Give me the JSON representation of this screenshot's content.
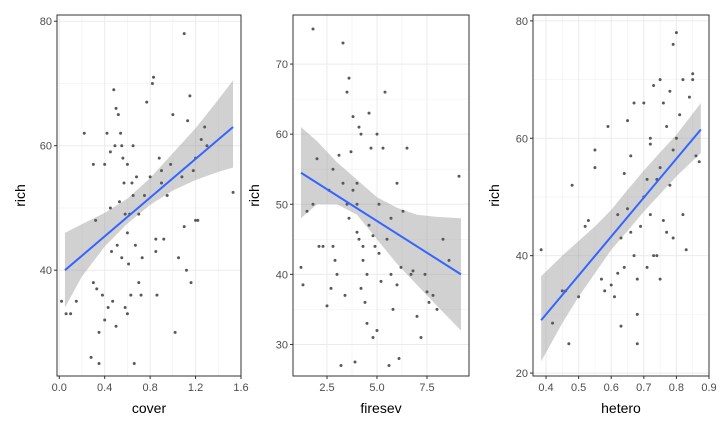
{
  "chart_data": [
    {
      "type": "scatter",
      "xlabel": "cover",
      "ylabel": "rich",
      "xlim": [
        -0.02,
        1.6
      ],
      "ylim": [
        23,
        81
      ],
      "xticks": [
        0.0,
        0.4,
        0.8,
        1.2,
        1.6
      ],
      "yticks": [
        40,
        60,
        80
      ],
      "xtick_labels": [
        "0.0",
        "0.4",
        "0.8",
        "1.2",
        "1.6"
      ],
      "ytick_labels": [
        "40",
        "60",
        "80"
      ],
      "grid": true,
      "fit_line": {
        "x": [
          0.05,
          1.53
        ],
        "y": [
          40,
          63
        ]
      },
      "ci_band": {
        "x": [
          0.05,
          0.2,
          0.4,
          0.6,
          0.8,
          1.0,
          1.2,
          1.4,
          1.53
        ],
        "lower": [
          34,
          39,
          43.8,
          47.5,
          50.5,
          52.8,
          54.5,
          55.8,
          56.5
        ],
        "upper": [
          46,
          47.4,
          49.2,
          51.5,
          54.8,
          58.8,
          62.8,
          67.4,
          70.5
        ]
      },
      "x": [
        0.02,
        0.06,
        0.1,
        0.15,
        0.22,
        0.28,
        0.3,
        0.32,
        0.33,
        0.35,
        0.38,
        0.4,
        0.42,
        0.43,
        0.45,
        0.46,
        0.47,
        0.48,
        0.49,
        0.5,
        0.5,
        0.51,
        0.52,
        0.53,
        0.54,
        0.55,
        0.55,
        0.56,
        0.57,
        0.58,
        0.58,
        0.6,
        0.6,
        0.61,
        0.62,
        0.63,
        0.64,
        0.65,
        0.66,
        0.67,
        0.68,
        0.7,
        0.72,
        0.73,
        0.75,
        0.77,
        0.8,
        0.82,
        0.83,
        0.85,
        0.85,
        0.86,
        0.88,
        0.9,
        0.92,
        0.95,
        0.98,
        1.0,
        1.02,
        1.05,
        1.08,
        1.1,
        1.12,
        1.13,
        1.15,
        1.16,
        1.18,
        1.2,
        1.22,
        1.25,
        1.28,
        1.3,
        0.3,
        0.4,
        0.45,
        0.6,
        0.7,
        0.9,
        1.1,
        1.2,
        1.53,
        0.35,
        0.65
      ],
      "y": [
        35,
        33,
        33,
        35,
        62,
        26,
        57,
        48,
        37,
        25,
        36,
        32,
        62,
        34,
        59,
        43,
        35,
        69,
        60,
        66,
        31,
        44,
        65,
        51,
        62,
        60,
        42,
        58,
        54,
        49,
        34,
        57,
        33,
        41,
        49,
        36,
        54,
        60,
        25,
        44,
        55,
        49,
        36,
        42,
        52,
        67,
        55,
        70,
        71,
        45,
        43,
        36,
        58,
        54,
        45,
        52,
        57,
        65,
        30,
        42,
        55,
        78,
        40,
        64,
        68,
        38,
        56,
        48,
        48,
        61,
        63,
        60,
        38,
        57,
        50,
        46,
        38,
        56,
        47,
        58,
        52.5,
        30,
        52
      ]
    },
    {
      "type": "scatter",
      "xlabel": "firesev",
      "ylabel": "rich",
      "xlim": [
        0.8,
        9.6
      ],
      "ylim": [
        25.5,
        77
      ],
      "xticks": [
        2.5,
        5.0,
        7.5
      ],
      "yticks": [
        30,
        40,
        50,
        60,
        70
      ],
      "xtick_labels": [
        "2.5",
        "5.0",
        "7.5"
      ],
      "ytick_labels": [
        "30",
        "40",
        "50",
        "60",
        "70"
      ],
      "grid": true,
      "fit_line": {
        "x": [
          1.2,
          9.2
        ],
        "y": [
          54.5,
          40
        ]
      },
      "ci_band": {
        "x": [
          1.2,
          2.0,
          3.0,
          4.0,
          5.0,
          6.0,
          7.0,
          8.0,
          9.2
        ],
        "lower": [
          48,
          50,
          50,
          48.5,
          45,
          41.5,
          38.5,
          35.5,
          32
        ],
        "upper": [
          61,
          59,
          56,
          53.5,
          51,
          49.5,
          48.5,
          48.2,
          48
        ]
      },
      "x": [
        1.2,
        1.3,
        1.5,
        1.8,
        2.0,
        2.1,
        2.3,
        2.5,
        2.6,
        2.7,
        2.8,
        2.9,
        3.0,
        3.1,
        3.2,
        3.3,
        3.4,
        3.5,
        3.6,
        3.7,
        3.8,
        3.8,
        3.9,
        4.0,
        4.0,
        4.1,
        4.2,
        4.2,
        4.3,
        4.4,
        4.5,
        4.5,
        4.6,
        4.7,
        4.8,
        4.9,
        5.0,
        5.0,
        5.1,
        5.2,
        5.3,
        5.4,
        5.5,
        5.6,
        5.7,
        5.8,
        6.0,
        6.1,
        6.2,
        6.3,
        6.5,
        6.7,
        7.0,
        7.2,
        7.4,
        7.6,
        7.8,
        8.0,
        8.3,
        8.6,
        9.1,
        1.8,
        3.3,
        3.6,
        4.0,
        4.3,
        4.8,
        5.1,
        5.7,
        6.0,
        6.8,
        7.5,
        2.8,
        3.5,
        4.1,
        4.6
      ],
      "y": [
        41,
        38.5,
        49,
        75,
        56.5,
        44,
        44,
        35.5,
        52,
        38,
        55,
        42,
        40,
        57,
        27,
        73,
        37,
        66,
        68,
        57.5,
        52,
        62.5,
        27.5,
        53,
        46,
        61,
        38,
        60,
        42,
        36,
        40,
        33,
        63,
        58,
        31,
        44,
        32,
        60,
        43,
        39,
        58,
        66,
        45,
        27,
        40,
        35,
        53,
        28,
        41,
        49,
        58,
        40,
        34,
        31,
        40,
        36,
        37,
        35,
        45,
        42,
        54,
        50,
        53,
        48,
        50,
        44,
        45.5,
        50,
        48,
        38.5,
        40.5,
        37.5,
        44,
        50,
        45,
        47
      ]
    },
    {
      "type": "scatter",
      "xlabel": "hetero",
      "ylabel": "rich",
      "xlim": [
        0.36,
        0.9
      ],
      "ylim": [
        19.5,
        81
      ],
      "xticks": [
        0.4,
        0.5,
        0.6,
        0.7,
        0.8,
        0.9
      ],
      "yticks": [
        20,
        40,
        60,
        80
      ],
      "xtick_labels": [
        "0.4",
        "0.5",
        "0.6",
        "0.7",
        "0.8",
        "0.9"
      ],
      "ytick_labels": [
        "20",
        "40",
        "60",
        "80"
      ],
      "grid": true,
      "fit_line": {
        "x": [
          0.385,
          0.875
        ],
        "y": [
          29,
          61.5
        ]
      },
      "ci_band": {
        "x": [
          0.385,
          0.45,
          0.5,
          0.55,
          0.6,
          0.65,
          0.7,
          0.75,
          0.8,
          0.875
        ],
        "lower": [
          22,
          28.5,
          33,
          37,
          41,
          44.2,
          47.5,
          50.5,
          53.5,
          57.5
        ],
        "upper": [
          36.5,
          40,
          42.5,
          45,
          47.8,
          51.2,
          54.5,
          57.6,
          60.6,
          66
        ]
      },
      "x": [
        0.385,
        0.42,
        0.45,
        0.47,
        0.48,
        0.5,
        0.52,
        0.55,
        0.55,
        0.58,
        0.59,
        0.6,
        0.61,
        0.62,
        0.62,
        0.63,
        0.64,
        0.65,
        0.65,
        0.66,
        0.66,
        0.67,
        0.67,
        0.68,
        0.68,
        0.69,
        0.7,
        0.7,
        0.71,
        0.71,
        0.72,
        0.72,
        0.73,
        0.73,
        0.74,
        0.74,
        0.75,
        0.75,
        0.76,
        0.76,
        0.77,
        0.77,
        0.78,
        0.78,
        0.79,
        0.79,
        0.8,
        0.8,
        0.81,
        0.82,
        0.82,
        0.83,
        0.84,
        0.85,
        0.86,
        0.87,
        0.75,
        0.68,
        0.63,
        0.57,
        0.53,
        0.46,
        0.64,
        0.72,
        0.79,
        0.85
      ],
      "y": [
        41,
        28.5,
        34,
        25,
        52,
        33,
        45,
        55,
        58,
        34,
        62,
        35,
        33,
        47,
        37,
        28,
        38,
        48,
        63,
        44,
        57,
        40,
        66,
        25,
        36,
        45,
        50,
        66,
        53,
        38,
        60,
        47,
        40,
        69,
        40,
        53,
        36,
        70,
        46,
        66,
        44,
        62,
        52,
        68,
        76,
        43,
        60,
        78,
        64,
        47,
        70,
        41,
        67,
        71,
        57,
        56,
        55,
        30,
        43,
        36,
        46,
        34,
        54,
        59,
        58,
        70
      ]
    }
  ]
}
